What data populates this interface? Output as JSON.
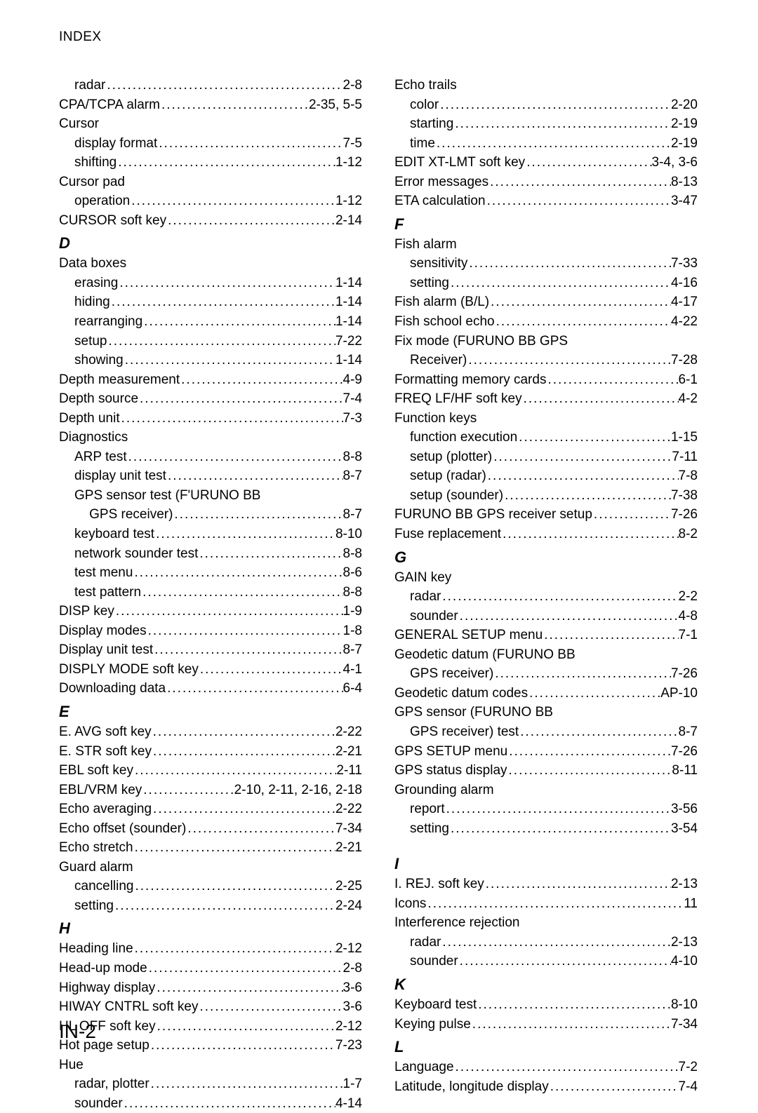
{
  "header": "INDEX",
  "pageNumber": "IN-2",
  "left": [
    {
      "type": "entry",
      "sub": true,
      "label": "radar",
      "pg": "2-8"
    },
    {
      "type": "entry",
      "sub": false,
      "label": "CPA/TCPA alarm",
      "pg": "2-35, 5-5"
    },
    {
      "type": "entry",
      "sub": false,
      "label": "Cursor",
      "pg": ""
    },
    {
      "type": "entry",
      "sub": true,
      "label": "display format",
      "pg": "7-5"
    },
    {
      "type": "entry",
      "sub": true,
      "label": "shifting",
      "pg": "1-12"
    },
    {
      "type": "entry",
      "sub": false,
      "label": "Cursor pad",
      "pg": ""
    },
    {
      "type": "entry",
      "sub": true,
      "label": "operation",
      "pg": "1-12"
    },
    {
      "type": "entry",
      "sub": false,
      "label": "CURSOR soft key",
      "pg": "2-14"
    },
    {
      "type": "letter",
      "label": "D"
    },
    {
      "type": "entry",
      "sub": false,
      "label": "Data boxes",
      "pg": ""
    },
    {
      "type": "entry",
      "sub": true,
      "label": "erasing",
      "pg": "1-14"
    },
    {
      "type": "entry",
      "sub": true,
      "label": "hiding",
      "pg": "1-14"
    },
    {
      "type": "entry",
      "sub": true,
      "label": "rearranging",
      "pg": "1-14"
    },
    {
      "type": "entry",
      "sub": true,
      "label": "setup",
      "pg": "7-22"
    },
    {
      "type": "entry",
      "sub": true,
      "label": "showing",
      "pg": "1-14"
    },
    {
      "type": "entry",
      "sub": false,
      "label": "Depth measurement",
      "pg": "4-9"
    },
    {
      "type": "entry",
      "sub": false,
      "label": "Depth source",
      "pg": "7-4"
    },
    {
      "type": "entry",
      "sub": false,
      "label": "Depth unit",
      "pg": "7-3"
    },
    {
      "type": "entry",
      "sub": false,
      "label": "Diagnostics",
      "pg": ""
    },
    {
      "type": "entry",
      "sub": true,
      "label": "ARP test",
      "pg": "8-8"
    },
    {
      "type": "entry",
      "sub": true,
      "label": "display unit test",
      "pg": "8-7"
    },
    {
      "type": "entry",
      "sub": true,
      "label": "GPS sensor test (F'URUNO BB",
      "pg": ""
    },
    {
      "type": "entry",
      "sub": true,
      "label": "    GPS receiver)",
      "pg": "8-7"
    },
    {
      "type": "entry",
      "sub": true,
      "label": "keyboard test",
      "pg": "8-10"
    },
    {
      "type": "entry",
      "sub": true,
      "label": "network sounder test",
      "pg": "8-8"
    },
    {
      "type": "entry",
      "sub": true,
      "label": "test menu",
      "pg": "8-6"
    },
    {
      "type": "entry",
      "sub": true,
      "label": "test pattern",
      "pg": "8-8"
    },
    {
      "type": "entry",
      "sub": false,
      "label": "DISP key",
      "pg": "1-9"
    },
    {
      "type": "entry",
      "sub": false,
      "label": "Display modes",
      "pg": "1-8"
    },
    {
      "type": "entry",
      "sub": false,
      "label": "Display unit test",
      "pg": "8-7"
    },
    {
      "type": "entry",
      "sub": false,
      "label": "DISPLY MODE soft key",
      "pg": "4-1"
    },
    {
      "type": "entry",
      "sub": false,
      "label": "Downloading data",
      "pg": "6-4"
    },
    {
      "type": "letter",
      "label": "E"
    },
    {
      "type": "entry",
      "sub": false,
      "label": "E. AVG soft key",
      "pg": "2-22"
    },
    {
      "type": "entry",
      "sub": false,
      "label": "E. STR soft key",
      "pg": "2-21"
    },
    {
      "type": "entry",
      "sub": false,
      "label": "EBL soft key",
      "pg": "2-11"
    },
    {
      "type": "entry",
      "sub": false,
      "label": "EBL/VRM key",
      "pg": " 2-10, 2-11, 2-16, 2-18"
    },
    {
      "type": "entry",
      "sub": false,
      "label": "Echo averaging",
      "pg": "2-22"
    },
    {
      "type": "entry",
      "sub": false,
      "label": "Echo offset (sounder)",
      "pg": "7-34"
    },
    {
      "type": "entry",
      "sub": false,
      "label": "Echo stretch",
      "pg": "2-21"
    },
    {
      "type": "entry",
      "sub": false,
      "label": "Guard alarm",
      "pg": ""
    },
    {
      "type": "entry",
      "sub": true,
      "label": "cancelling",
      "pg": "2-25"
    },
    {
      "type": "entry",
      "sub": true,
      "label": "setting",
      "pg": "2-24"
    },
    {
      "type": "letter",
      "label": "H"
    },
    {
      "type": "entry",
      "sub": false,
      "label": "Heading line",
      "pg": "2-12"
    },
    {
      "type": "entry",
      "sub": false,
      "label": "Head-up mode",
      "pg": "2-8"
    },
    {
      "type": "entry",
      "sub": false,
      "label": "Highway display",
      "pg": "3-6"
    },
    {
      "type": "entry",
      "sub": false,
      "label": "HIWAY CNTRL soft key",
      "pg": "3-6"
    },
    {
      "type": "entry",
      "sub": false,
      "label": "HL OFF soft key",
      "pg": "2-12"
    },
    {
      "type": "entry",
      "sub": false,
      "label": "Hot page setup",
      "pg": "7-23"
    },
    {
      "type": "entry",
      "sub": false,
      "label": "Hue",
      "pg": ""
    },
    {
      "type": "entry",
      "sub": true,
      "label": "radar, plotter",
      "pg": "1-7"
    },
    {
      "type": "entry",
      "sub": true,
      "label": "sounder",
      "pg": "4-14"
    }
  ],
  "right": [
    {
      "type": "entry",
      "sub": false,
      "label": "Echo trails",
      "pg": ""
    },
    {
      "type": "entry",
      "sub": true,
      "label": "color",
      "pg": " 2-20"
    },
    {
      "type": "entry",
      "sub": true,
      "label": "starting",
      "pg": " 2-19"
    },
    {
      "type": "entry",
      "sub": true,
      "label": "time",
      "pg": " 2-19"
    },
    {
      "type": "entry",
      "sub": false,
      "label": "EDIT XT-LMT soft key",
      "pg": " 3-4, 3-6"
    },
    {
      "type": "entry",
      "sub": false,
      "label": "Error messages",
      "pg": " 8-13"
    },
    {
      "type": "entry",
      "sub": false,
      "label": "ETA calculation",
      "pg": " 3-47"
    },
    {
      "type": "letter",
      "label": "F"
    },
    {
      "type": "entry",
      "sub": false,
      "label": "Fish alarm",
      "pg": ""
    },
    {
      "type": "entry",
      "sub": true,
      "label": "sensitivity",
      "pg": " 7-33"
    },
    {
      "type": "entry",
      "sub": true,
      "label": "setting",
      "pg": " 4-16"
    },
    {
      "type": "entry",
      "sub": false,
      "label": "Fish alarm (B/L)",
      "pg": " 4-17"
    },
    {
      "type": "entry",
      "sub": false,
      "label": "Fish school echo",
      "pg": " 4-22"
    },
    {
      "type": "entry",
      "sub": false,
      "label": "Fix mode (FURUNO BB GPS",
      "pg": ""
    },
    {
      "type": "entry",
      "sub": true,
      "label": "Receiver)",
      "pg": " 7-28"
    },
    {
      "type": "entry",
      "sub": false,
      "label": "Formatting memory cards",
      "pg": " 6-1"
    },
    {
      "type": "entry",
      "sub": false,
      "label": "FREQ LF/HF soft key",
      "pg": " 4-2"
    },
    {
      "type": "entry",
      "sub": false,
      "label": "Function keys",
      "pg": ""
    },
    {
      "type": "entry",
      "sub": true,
      "label": "function execution",
      "pg": " 1-15"
    },
    {
      "type": "entry",
      "sub": true,
      "label": "setup (plotter)",
      "pg": "7-11"
    },
    {
      "type": "entry",
      "sub": true,
      "label": "setup (radar)",
      "pg": " 7-8"
    },
    {
      "type": "entry",
      "sub": true,
      "label": "setup (sounder)",
      "pg": " 7-38"
    },
    {
      "type": "entry",
      "sub": false,
      "label": "FURUNO BB GPS receiver setup",
      "pg": " 7-26"
    },
    {
      "type": "entry",
      "sub": false,
      "label": "Fuse replacement",
      "pg": " 8-2"
    },
    {
      "type": "letter",
      "label": "G"
    },
    {
      "type": "entry",
      "sub": false,
      "label": "GAIN key",
      "pg": ""
    },
    {
      "type": "entry",
      "sub": true,
      "label": "radar",
      "pg": " 2-2"
    },
    {
      "type": "entry",
      "sub": true,
      "label": "sounder",
      "pg": " 4-8"
    },
    {
      "type": "entry",
      "sub": false,
      "label": "GENERAL SETUP menu",
      "pg": " 7-1"
    },
    {
      "type": "entry",
      "sub": false,
      "label": "Geodetic datum (FURUNO BB",
      "pg": ""
    },
    {
      "type": "entry",
      "sub": true,
      "label": "GPS receiver)",
      "pg": " 7-26"
    },
    {
      "type": "entry",
      "sub": false,
      "label": "Geodetic datum codes",
      "pg": "AP-10"
    },
    {
      "type": "entry",
      "sub": false,
      "label": "GPS sensor (FURUNO BB",
      "pg": ""
    },
    {
      "type": "entry",
      "sub": true,
      "label": "GPS receiver) test",
      "pg": " 8-7"
    },
    {
      "type": "entry",
      "sub": false,
      "label": "GPS SETUP menu",
      "pg": " 7-26"
    },
    {
      "type": "entry",
      "sub": false,
      "label": "GPS status display",
      "pg": "8-11"
    },
    {
      "type": "entry",
      "sub": false,
      "label": "Grounding alarm",
      "pg": ""
    },
    {
      "type": "entry",
      "sub": true,
      "label": "report",
      "pg": " 3-56"
    },
    {
      "type": "entry",
      "sub": true,
      "label": "setting",
      "pg": " 3-54"
    },
    {
      "type": "spacer"
    },
    {
      "type": "letter",
      "label": "I"
    },
    {
      "type": "entry",
      "sub": false,
      "label": "I. REJ. soft key",
      "pg": " 2-13"
    },
    {
      "type": "entry",
      "sub": false,
      "label": "Icons",
      "pg": "11"
    },
    {
      "type": "entry",
      "sub": false,
      "label": "Interference rejection",
      "pg": ""
    },
    {
      "type": "entry",
      "sub": true,
      "label": "radar",
      "pg": " 2-13"
    },
    {
      "type": "entry",
      "sub": true,
      "label": "sounder",
      "pg": " 4-10"
    },
    {
      "type": "letter",
      "label": "K"
    },
    {
      "type": "entry",
      "sub": false,
      "label": "Keyboard test",
      "pg": " 8-10"
    },
    {
      "type": "entry",
      "sub": false,
      "label": "Keying pulse",
      "pg": " 7-34"
    },
    {
      "type": "letter",
      "label": "L"
    },
    {
      "type": "entry",
      "sub": false,
      "label": "Language",
      "pg": " 7-2"
    },
    {
      "type": "entry",
      "sub": false,
      "label": "Latitude, longitude display",
      "pg": " 7-4"
    }
  ]
}
